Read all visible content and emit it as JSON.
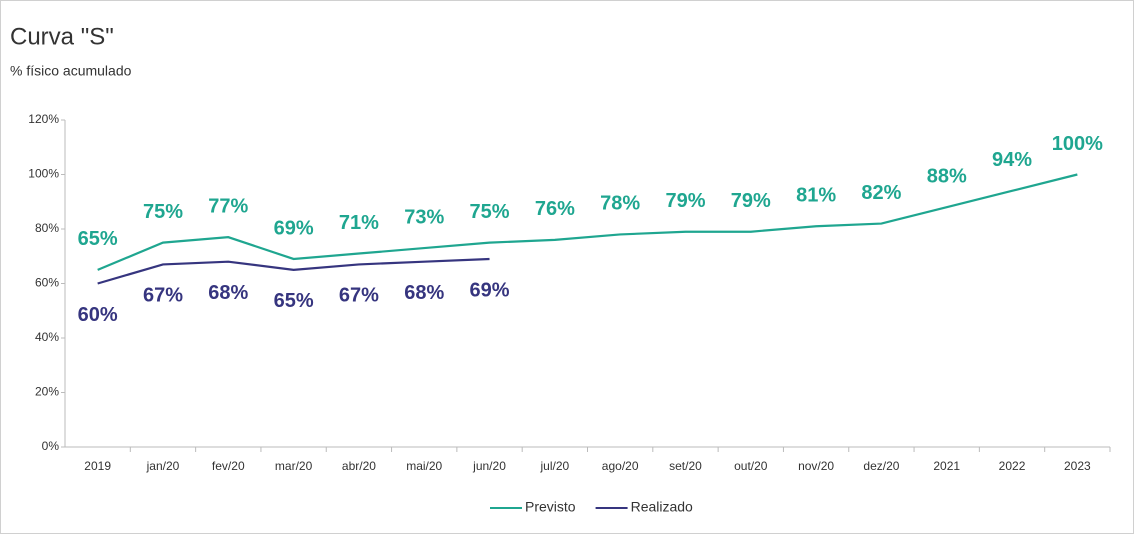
{
  "chart_data": {
    "type": "line",
    "title": "Curva \"S\"",
    "subtitle": "% físico acumulado",
    "categories": [
      "2019",
      "jan/20",
      "fev/20",
      "mar/20",
      "abr/20",
      "mai/20",
      "jun/20",
      "jul/20",
      "ago/20",
      "set/20",
      "out/20",
      "nov/20",
      "dez/20",
      "2021",
      "2022",
      "2023"
    ],
    "series": [
      {
        "name": "Previsto",
        "color": "#1fa690",
        "values": [
          65,
          75,
          77,
          69,
          71,
          73,
          75,
          76,
          78,
          79,
          79,
          81,
          82,
          88,
          94,
          100
        ],
        "value_labels": [
          "65%",
          "75%",
          "77%",
          "69%",
          "71%",
          "73%",
          "75%",
          "76%",
          "78%",
          "79%",
          "79%",
          "81%",
          "82%",
          "88%",
          "94%",
          "100%"
        ]
      },
      {
        "name": "Realizado",
        "color": "#36357f",
        "values": [
          60,
          67,
          68,
          65,
          67,
          68,
          69,
          null,
          null,
          null,
          null,
          null,
          null,
          null,
          null,
          null
        ],
        "value_labels": [
          "60%",
          "67%",
          "68%",
          "65%",
          "67%",
          "68%",
          "69%",
          null,
          null,
          null,
          null,
          null,
          null,
          null,
          null,
          null
        ]
      }
    ],
    "ylim": [
      0,
      120
    ],
    "yticks": [
      {
        "value": 0,
        "label": "0%"
      },
      {
        "value": 20,
        "label": "20%"
      },
      {
        "value": 40,
        "label": "40%"
      },
      {
        "value": 60,
        "label": "60%"
      },
      {
        "value": 80,
        "label": "80%"
      },
      {
        "value": 100,
        "label": "100%"
      },
      {
        "value": 120,
        "label": "120%"
      }
    ],
    "grid": false,
    "legend": "bottom"
  }
}
